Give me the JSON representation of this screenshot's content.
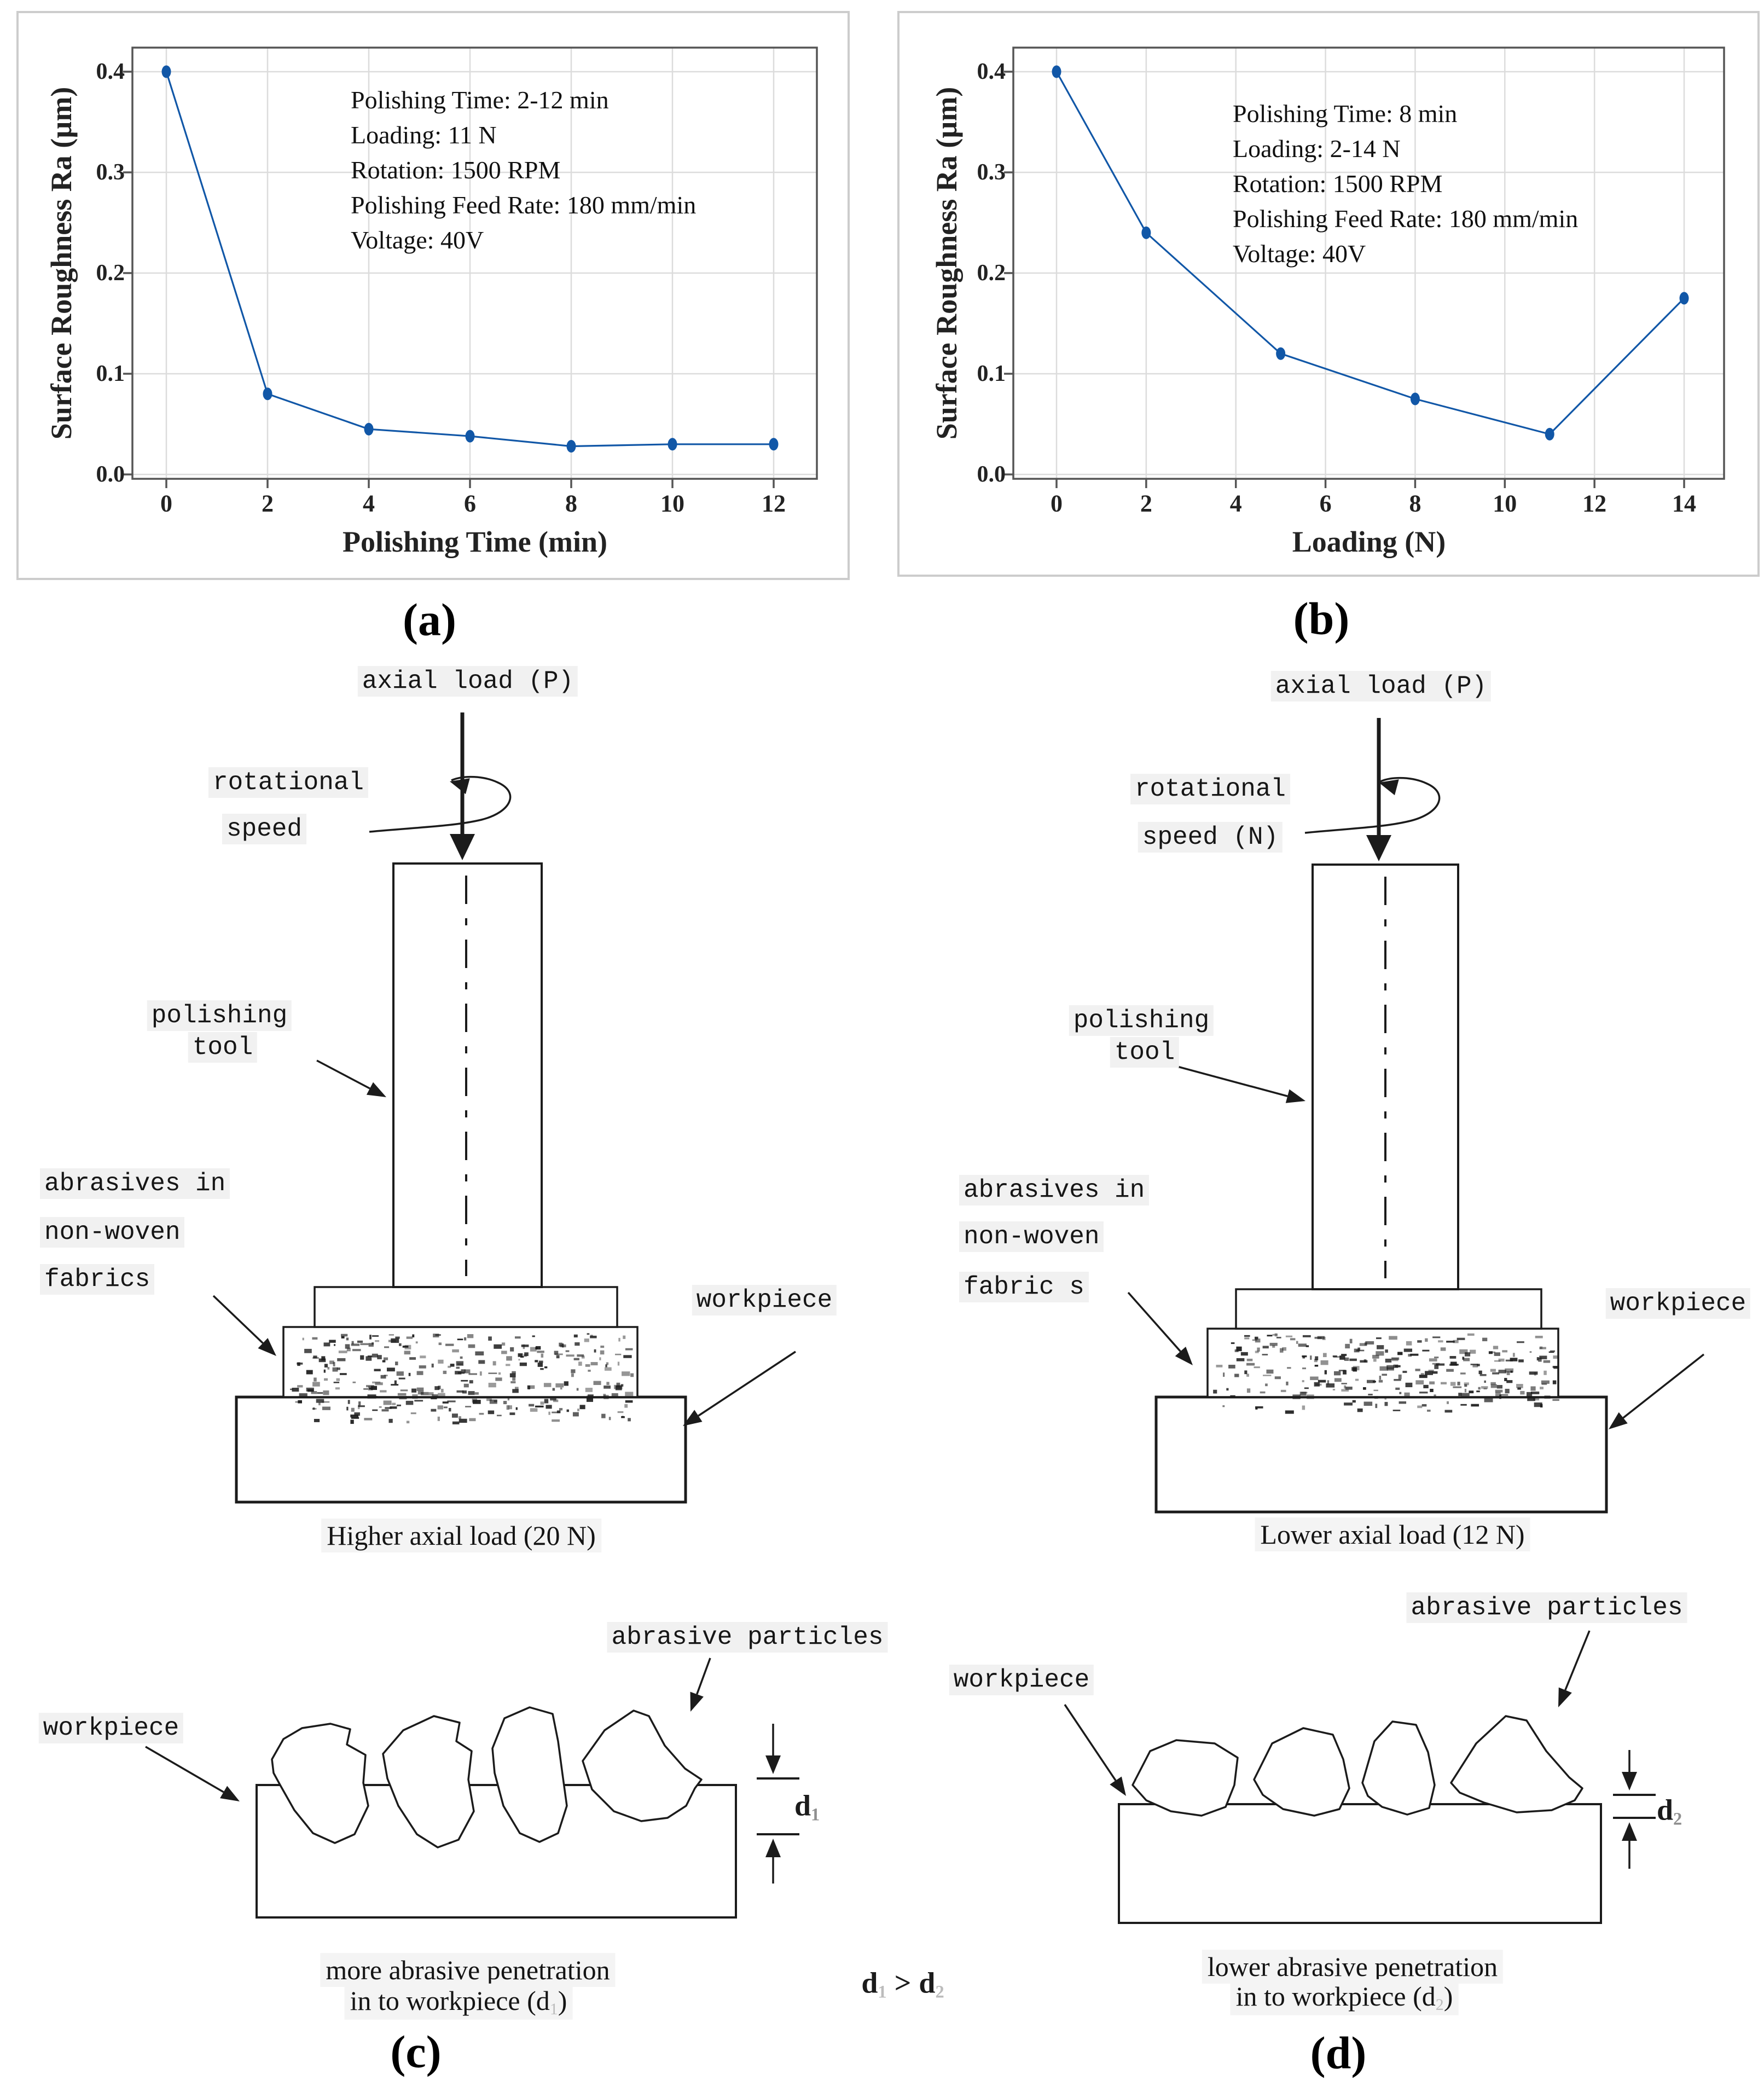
{
  "colors": {
    "line": "#1157a7",
    "grid": "#dcdcdc",
    "plot_border": "#555555",
    "panel_border": "#cccccc",
    "ink": "#1b1b1b"
  },
  "labels": {
    "a": "(a)",
    "b": "(b)",
    "c": "(c)",
    "d": "(d)"
  },
  "chart_data": [
    {
      "type": "line",
      "title": "",
      "xlabel": "Polishing Time (min)",
      "ylabel": "Surface Roughness Ra (µm)",
      "x": [
        0,
        2,
        4,
        6,
        8,
        10,
        12
      ],
      "y": [
        0.4,
        0.08,
        0.045,
        0.038,
        0.028,
        0.03,
        0.03
      ],
      "x_ticks": [
        0,
        2,
        4,
        6,
        8,
        10,
        12
      ],
      "y_ticks": [
        0.0,
        0.1,
        0.2,
        0.3,
        0.4
      ],
      "xlim": [
        -0.67,
        12.85
      ],
      "ylim": [
        0,
        0.424
      ],
      "grid": true,
      "legend": "none",
      "annotation": [
        "Polishing Time: 2-12 min",
        "Loading: 11 N",
        "Rotation: 1500 RPM",
        "Polishing Feed Rate: 180 mm/min",
        "Voltage: 40V"
      ]
    },
    {
      "type": "line",
      "title": "",
      "xlabel": "Loading (N)",
      "ylabel": "Surface Roughness Ra (µm)",
      "x": [
        0,
        2,
        5,
        8,
        11,
        14
      ],
      "y": [
        0.4,
        0.24,
        0.12,
        0.075,
        0.04,
        0.175
      ],
      "x_ticks": [
        0,
        2,
        4,
        6,
        8,
        10,
        12,
        14
      ],
      "y_ticks": [
        0.0,
        0.1,
        0.2,
        0.3,
        0.4
      ],
      "xlim": [
        -0.96,
        14.89
      ],
      "ylim": [
        0,
        0.424
      ],
      "grid": true,
      "legend": "none",
      "annotation": [
        "Polishing Time: 8 min",
        "Loading: 2-14 N",
        "Rotation: 1500 RPM",
        "Polishing Feed Rate: 180 mm/min",
        "Voltage: 40V"
      ]
    }
  ],
  "diagrams": {
    "apparatus_left": {
      "axial_load": "axial load (P)",
      "rotation_line1": "rotational",
      "rotation_line2": "speed",
      "tool_line1": "polishing",
      "tool_line2": "tool",
      "abrasives_line1": "abrasives in",
      "abrasives_line2": "non-woven",
      "abrasives_line3": "fabrics",
      "workpiece": "workpiece",
      "caption": "Higher axial load (20 N)"
    },
    "apparatus_right": {
      "axial_load": "axial load (P)",
      "rotation_line1": "rotational",
      "rotation_line2": "speed (N)",
      "tool_line1": "polishing",
      "tool_line2": "tool",
      "abrasives_line1": "abrasives in",
      "abrasives_line2": "non-woven",
      "abrasives_line3": "fabric s",
      "workpiece": "workpiece",
      "caption": "Lower axial load (12 N)"
    },
    "penetration_left": {
      "particles": "abrasive particles",
      "workpiece": "workpiece",
      "depth_base": "d",
      "depth_sub": "1",
      "caption1": "more abrasive penetration",
      "caption2_prefix": "in to workpiece (d",
      "caption2_sub": "1",
      "caption2_suffix": ")"
    },
    "penetration_right": {
      "particles": "abrasive particles",
      "workpiece": "workpiece",
      "depth_base": "d",
      "depth_sub": "2",
      "caption1": "lower abrasive penetration",
      "caption2_prefix": "in to workpiece (d",
      "caption2_sub": "2",
      "caption2_suffix": ")"
    },
    "comparison": {
      "lhs": "d",
      "lhs_sub": "1",
      "op": ">",
      "rhs": "d",
      "rhs_sub": "2"
    }
  }
}
